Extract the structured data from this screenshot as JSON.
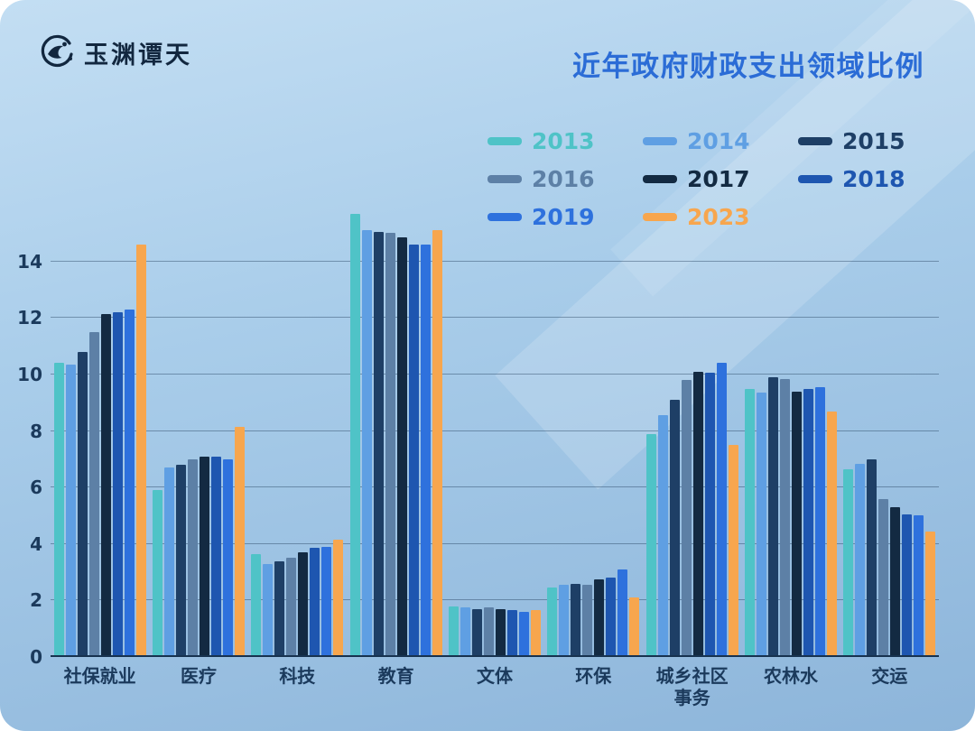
{
  "brand": {
    "name": "玉渊谭天"
  },
  "header": {
    "title": "近年政府财政支出领域比例"
  },
  "chart_data": {
    "type": "bar",
    "title": "近年政府财政支出领域比例",
    "categories": [
      "社保就业",
      "医疗",
      "科技",
      "教育",
      "文体",
      "环保",
      "城乡社区\n事务",
      "农林水",
      "交运"
    ],
    "yticks": [
      0,
      2,
      4,
      6,
      8,
      10,
      12,
      14
    ],
    "ylim": [
      0,
      16
    ],
    "grid": true,
    "legend_position": "top-right",
    "series": [
      {
        "name": "2013",
        "color": "#4fc3c7",
        "values": [
          10.4,
          5.9,
          3.65,
          15.7,
          1.8,
          2.45,
          7.9,
          9.5,
          6.65
        ]
      },
      {
        "name": "2014",
        "color": "#5f9fe3",
        "values": [
          10.35,
          6.7,
          3.3,
          15.1,
          1.75,
          2.55,
          8.55,
          9.35,
          6.85
        ]
      },
      {
        "name": "2015",
        "color": "#1e3f66",
        "values": [
          10.8,
          6.8,
          3.4,
          15.05,
          1.7,
          2.6,
          9.1,
          9.9,
          7.0
        ]
      },
      {
        "name": "2016",
        "color": "#5d80a6",
        "values": [
          11.5,
          7.0,
          3.5,
          15.0,
          1.75,
          2.55,
          9.8,
          9.85,
          5.6
        ]
      },
      {
        "name": "2017",
        "color": "#132a42",
        "values": [
          12.15,
          7.1,
          3.7,
          14.85,
          1.7,
          2.75,
          10.1,
          9.4,
          5.3
        ]
      },
      {
        "name": "2018",
        "color": "#1e56b0",
        "values": [
          12.2,
          7.1,
          3.85,
          14.6,
          1.65,
          2.8,
          10.05,
          9.5,
          5.05
        ]
      },
      {
        "name": "2019",
        "color": "#2e71dd",
        "values": [
          12.3,
          7.0,
          3.9,
          14.6,
          1.6,
          3.1,
          10.4,
          9.55,
          5.0
        ]
      },
      {
        "name": "2023",
        "color": "#f7a64e",
        "values": [
          14.6,
          8.15,
          4.15,
          15.1,
          1.65,
          2.1,
          7.5,
          8.7,
          4.45
        ]
      }
    ]
  }
}
